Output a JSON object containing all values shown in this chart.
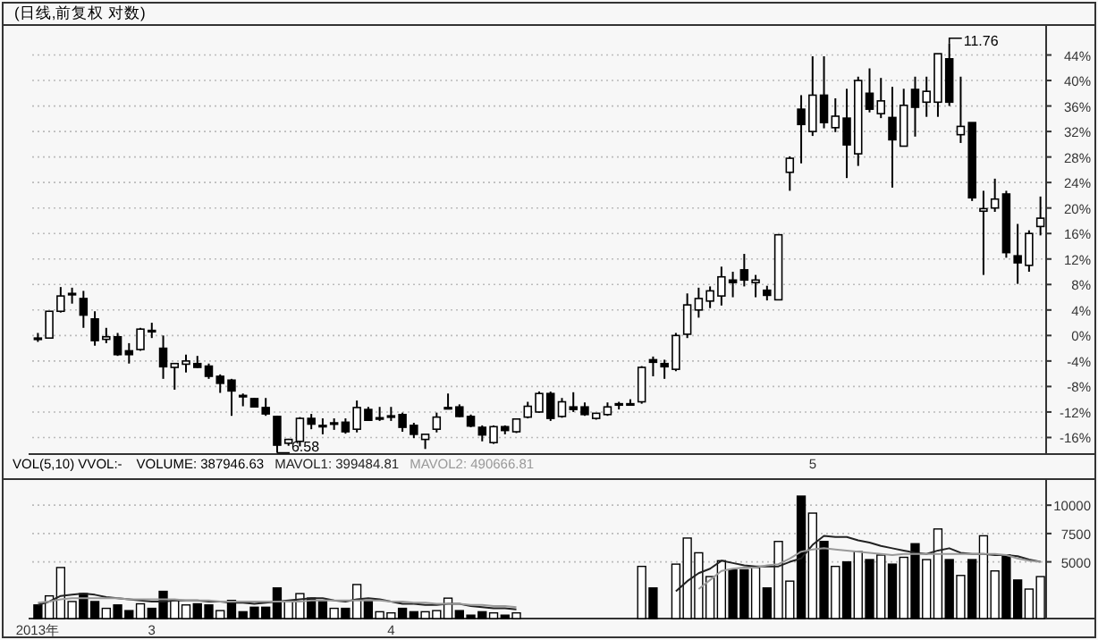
{
  "chart_data": [
    {
      "type": "candlestick",
      "title": "(日线,前复权 对数)",
      "grid": "y",
      "categories": [
        null,
        null,
        null,
        null,
        null,
        null,
        null,
        null,
        null,
        null,
        null,
        null,
        null,
        null,
        null,
        null,
        null,
        null,
        null,
        null,
        null,
        null,
        null,
        null,
        null,
        null,
        null,
        null,
        null,
        null,
        null,
        null,
        null,
        null,
        null,
        null,
        null,
        null,
        null,
        null,
        null,
        null,
        null,
        null,
        null,
        null,
        null,
        null,
        null,
        null,
        null,
        null,
        null,
        null,
        null,
        null,
        null,
        null,
        null,
        null,
        null,
        null,
        null,
        null,
        null,
        null,
        null,
        null,
        "5",
        null,
        null,
        null,
        null,
        null,
        null,
        null,
        null,
        null,
        null,
        null,
        null,
        null,
        null,
        null,
        null,
        null,
        null,
        null,
        null
      ],
      "ohlc": [
        [
          -0.4,
          0.4,
          -1,
          -0.4
        ],
        [
          -0.4,
          3.8,
          -0.4,
          3.8
        ],
        [
          3.8,
          7.6,
          3.6,
          6.2
        ],
        [
          6.6,
          7.5,
          5,
          6.6
        ],
        [
          5.8,
          7,
          1.2,
          3.2
        ],
        [
          2.6,
          3.8,
          -1.6,
          -0.8
        ],
        [
          -0.6,
          1.2,
          -1.2,
          -0.2
        ],
        [
          -0.2,
          0.4,
          -3.2,
          -3
        ],
        [
          -2.4,
          -1.2,
          -4.4,
          -3
        ],
        [
          -2.2,
          1.2,
          -2.4,
          1
        ],
        [
          0.8,
          2,
          -0.4,
          0.8
        ],
        [
          -2,
          0,
          -6.8,
          -4.9
        ],
        [
          -5,
          -4.4,
          -8.5,
          -4.4
        ],
        [
          -4.5,
          -3,
          -5.8,
          -4
        ],
        [
          -4.4,
          -3.2,
          -5.1,
          -5
        ],
        [
          -4.8,
          -4.4,
          -6.8,
          -6.4
        ],
        [
          -6.4,
          -6.1,
          -9,
          -7.5
        ],
        [
          -7,
          -6.8,
          -12.6,
          -8.7
        ],
        [
          -9.4,
          -9.1,
          -11.1,
          -9.4
        ],
        [
          -9.9,
          -9.8,
          -11.3,
          -11.2
        ],
        [
          -11.3,
          -9.8,
          -12.6,
          -12.3
        ],
        [
          -12.7,
          -12.6,
          -18.4,
          -17.2
        ],
        [
          -16.9,
          -16.2,
          -17.3,
          -16.3
        ],
        [
          -16.6,
          -12.8,
          -17.4,
          -13
        ],
        [
          -13,
          -12.3,
          -14.7,
          -13.9
        ],
        [
          -14.1,
          -13,
          -15.5,
          -14.1
        ],
        [
          -13.7,
          -13,
          -14.8,
          -13.7
        ],
        [
          -13.6,
          -13,
          -15.4,
          -15.1
        ],
        [
          -14.7,
          -10.2,
          -15.2,
          -11.3
        ],
        [
          -11.6,
          -11.2,
          -13.4,
          -13.3
        ],
        [
          -12.9,
          -11.2,
          -13.4,
          -12.9
        ],
        [
          -12.6,
          -11.2,
          -13.4,
          -12.6
        ],
        [
          -12.4,
          -12.1,
          -15.1,
          -14.4
        ],
        [
          -14.1,
          -13.7,
          -16.1,
          -15.5
        ],
        [
          -16.3,
          -15.5,
          -17.8,
          -15.5
        ],
        [
          -14.7,
          -12.1,
          -15.2,
          -12.8
        ],
        [
          -11.3,
          -9.1,
          -11.4,
          -11.3
        ],
        [
          -11.2,
          -10.8,
          -12.8,
          -12.7
        ],
        [
          -12.7,
          -12.4,
          -14.4,
          -14.2
        ],
        [
          -14.4,
          -14.1,
          -16.6,
          -15.6
        ],
        [
          -16.8,
          -14.1,
          -17,
          -14.3
        ],
        [
          -14.3,
          -14.1,
          -15.5,
          -14.9
        ],
        [
          -15.1,
          -13,
          -15.3,
          -13.1
        ],
        [
          -12.8,
          -10.4,
          -13,
          -11.1
        ],
        [
          -12,
          -8.8,
          -12.1,
          -9.1
        ],
        [
          -9.1,
          -8.8,
          -13.4,
          -13
        ],
        [
          -12.7,
          -9.8,
          -12.9,
          -10.4
        ],
        [
          -11.2,
          -8.9,
          -12,
          -11.6
        ],
        [
          -11.2,
          -10.5,
          -12.6,
          -12.4
        ],
        [
          -13,
          -12.2,
          -13.2,
          -12.2
        ],
        [
          -12.4,
          -10.5,
          -12.6,
          -11.2
        ],
        [
          -10.7,
          -10.4,
          -11.6,
          -10.7
        ],
        [
          -10.7,
          -10,
          -11,
          -10.7
        ],
        [
          -10.4,
          -4.8,
          -10.7,
          -5
        ],
        [
          -3.8,
          -3.3,
          -6.4,
          -4.2
        ],
        [
          -4.4,
          -3.8,
          -6.8,
          -4.9
        ],
        [
          -5.3,
          0.4,
          -5.6,
          0
        ],
        [
          0.2,
          6.6,
          -0.4,
          4.8
        ],
        [
          4,
          7.5,
          2.8,
          5.8
        ],
        [
          5.4,
          7.7,
          4.3,
          7
        ],
        [
          6.2,
          10.8,
          4.7,
          9.2
        ],
        [
          8.7,
          10,
          6,
          8.3
        ],
        [
          10.3,
          12.8,
          7.7,
          8.7
        ],
        [
          8.3,
          9.5,
          6,
          8.7
        ],
        [
          7.1,
          7.8,
          5.5,
          6.3
        ],
        [
          5.6,
          15.8,
          5.6,
          15.8
        ],
        [
          25.6,
          28.1,
          22.7,
          27.8
        ],
        [
          35.5,
          37.7,
          27,
          33.1
        ],
        [
          32,
          43.8,
          31.3,
          37.7
        ],
        [
          37.7,
          43.8,
          32.5,
          33.4
        ],
        [
          32.6,
          37.2,
          31.9,
          34.4
        ],
        [
          34.1,
          38.7,
          24.7,
          29.9
        ],
        [
          28.5,
          40.6,
          26.6,
          40
        ],
        [
          38,
          41.9,
          35,
          35.5
        ],
        [
          34.8,
          40.4,
          34.1,
          36.8
        ],
        [
          34.2,
          39,
          23.2,
          30.7
        ],
        [
          29.7,
          38.7,
          29.7,
          36.1
        ],
        [
          38.6,
          40.6,
          31.2,
          35.8
        ],
        [
          36.6,
          40.6,
          34.3,
          38.3
        ],
        [
          36.6,
          44.2,
          34.3,
          44.2
        ],
        [
          43.4,
          45.8,
          36,
          36.6
        ],
        [
          31.5,
          40.6,
          30.2,
          32.8
        ],
        [
          33.4,
          33.4,
          21.1,
          21.6
        ],
        [
          19.5,
          22.7,
          9.5,
          19.9
        ],
        [
          20,
          24.6,
          19.4,
          21.4
        ],
        [
          22.2,
          22.7,
          12.2,
          13
        ],
        [
          12.5,
          17.5,
          8.1,
          11.4
        ],
        [
          11,
          16.5,
          10,
          16
        ],
        [
          17.1,
          21.8,
          15.7,
          18.4
        ]
      ],
      "ylim": [
        -18.6,
        48.7
      ],
      "yticks": [
        {
          "value": 44,
          "label": "44%"
        },
        {
          "value": 40,
          "label": "40%"
        },
        {
          "value": 36,
          "label": "36%"
        },
        {
          "value": 32,
          "label": "32%"
        },
        {
          "value": 28,
          "label": "28%"
        },
        {
          "value": 24,
          "label": "24%"
        },
        {
          "value": 20,
          "label": "20%"
        },
        {
          "value": 16,
          "label": "16%"
        },
        {
          "value": 12,
          "label": "12%"
        },
        {
          "value": 8,
          "label": "8%"
        },
        {
          "value": 4,
          "label": "4%"
        },
        {
          "value": 0,
          "label": "0%"
        },
        {
          "value": -4,
          "label": "-4%"
        },
        {
          "value": -8,
          "label": "-8%"
        },
        {
          "value": -12,
          "label": "-12%"
        },
        {
          "value": -16,
          "label": "-16%"
        }
      ],
      "annotations": [
        "6.58",
        "11.76"
      ]
    },
    {
      "type": "bar",
      "title": "VOL(5,10) VVOL:-",
      "grid": "y",
      "legend": "top left",
      "categories": [
        "2013年",
        null,
        null,
        null,
        null,
        null,
        null,
        null,
        null,
        null,
        "3",
        null,
        null,
        null,
        null,
        null,
        null,
        null,
        null,
        null,
        null,
        null,
        null,
        null,
        null,
        null,
        null,
        null,
        null,
        null,
        null,
        "4",
        null,
        null,
        null,
        null,
        null,
        null,
        null,
        null,
        null,
        null,
        null,
        null,
        null,
        null,
        null,
        null,
        null,
        null,
        null,
        null,
        null,
        null,
        null,
        null,
        null,
        null,
        null,
        null,
        null,
        null,
        null,
        null,
        null,
        null,
        null,
        null,
        null,
        null,
        null,
        null,
        null,
        null,
        null,
        null,
        null,
        null,
        null,
        null,
        null,
        null,
        null,
        null,
        null,
        null,
        null,
        null,
        null
      ],
      "series": [
        {
          "name": "VOLUME: 387946.63",
          "color": "#000000",
          "values": [
            1200,
            2000,
            4500,
            1500,
            2200,
            1500,
            900,
            1200,
            700,
            1300,
            900,
            2400,
            1600,
            1200,
            1300,
            1200,
            700,
            1600,
            600,
            1000,
            1000,
            2700,
            1500,
            2200,
            1800,
            1500,
            900,
            900,
            3000,
            1600,
            600,
            500,
            900,
            600,
            600,
            700,
            1800,
            700,
            300,
            600,
            500,
            300,
            500,
            null,
            null,
            null,
            null,
            null,
            null,
            null,
            null,
            null,
            null,
            4600,
            2700,
            null,
            4800,
            7100,
            5800,
            3700,
            5100,
            4300,
            4300,
            4500,
            2700,
            6800,
            3300,
            10800,
            9300,
            6800,
            4600,
            5000,
            5900,
            5200,
            5600,
            4800,
            5400,
            6600,
            5200,
            7900,
            5200,
            3800,
            5200,
            7300,
            4200,
            5600,
            3400,
            2600,
            3700
          ],
          "colors": [
            "#000000",
            "#ffffff",
            "#ffffff",
            "#ffffff",
            "#000000",
            "#000000",
            "#ffffff",
            "#000000",
            "#000000",
            "#ffffff",
            "#000000",
            "#000000",
            "#ffffff",
            "#ffffff",
            "#000000",
            "#000000",
            "#ffffff",
            "#000000",
            "#000000",
            "#000000",
            "#000000",
            "#000000",
            "#ffffff",
            "#ffffff",
            "#000000",
            "#000000",
            "#ffffff",
            "#000000",
            "#ffffff",
            "#000000",
            "#ffffff",
            "#ffffff",
            "#000000",
            "#000000",
            "#ffffff",
            "#ffffff",
            "#ffffff",
            "#000000",
            "#000000",
            "#000000",
            "#ffffff",
            "#000000",
            "#ffffff",
            "#ffffff",
            "#ffffff",
            "#000000",
            "#ffffff",
            "#000000",
            "#000000",
            "#ffffff",
            "#ffffff",
            "#ffffff",
            "#ffffff",
            "#ffffff",
            "#000000",
            "#000000",
            "#ffffff",
            "#ffffff",
            "#ffffff",
            "#ffffff",
            "#ffffff",
            "#000000",
            "#000000",
            "#ffffff",
            "#000000",
            "#ffffff",
            "#ffffff",
            "#000000",
            "#ffffff",
            "#000000",
            "#ffffff",
            "#000000",
            "#ffffff",
            "#000000",
            "#ffffff",
            "#000000",
            "#ffffff",
            "#000000",
            "#ffffff",
            "#ffffff",
            "#000000",
            "#ffffff",
            "#000000",
            "#ffffff",
            "#ffffff",
            "#000000",
            "#000000",
            "#ffffff",
            "#ffffff"
          ]
        },
        {
          "type": "line",
          "name": "MAVOL1: 399484.81",
          "color": "#222222",
          "values": [
            1200,
            1500,
            2000,
            2100,
            2200,
            2100,
            1900,
            1800,
            1700,
            1600,
            1500,
            1500,
            1600,
            1600,
            1600,
            1500,
            1500,
            1400,
            1400,
            1300,
            1400,
            1500,
            1600,
            1700,
            1800,
            1800,
            1600,
            1500,
            1700,
            1800,
            1700,
            1500,
            1300,
            1300,
            1200,
            1200,
            1300,
            1300,
            1100,
            1000,
            900,
            900,
            800,
            null,
            null,
            null,
            null,
            null,
            null,
            null,
            null,
            null,
            null,
            null,
            null,
            null,
            2400,
            3300,
            4000,
            4400,
            5100,
            4900,
            4700,
            4600,
            4600,
            4600,
            5000,
            5300,
            6500,
            7300,
            7200,
            7200,
            6900,
            6700,
            6400,
            6200,
            6000,
            5800,
            5700,
            6000,
            6200,
            5800,
            5700,
            5700,
            5600,
            5600,
            5500,
            5200,
            5000
          ]
        },
        {
          "type": "line",
          "name": "MAVOL2: 490666.81",
          "color": "#999999",
          "values": [
            1400,
            1500,
            1700,
            1800,
            1800,
            1800,
            1800,
            1800,
            1700,
            1700,
            1700,
            1700,
            1700,
            1600,
            1600,
            1600,
            1500,
            1500,
            1500,
            1500,
            1500,
            1500,
            1500,
            1500,
            1600,
            1600,
            1600,
            1600,
            1600,
            1600,
            1600,
            1500,
            1500,
            1400,
            1400,
            1300,
            1300,
            1300,
            1200,
            1200,
            1100,
            1100,
            1000,
            null,
            null,
            null,
            null,
            null,
            null,
            null,
            null,
            null,
            null,
            null,
            null,
            null,
            null,
            null,
            2600,
            3400,
            4200,
            4400,
            4500,
            4500,
            4700,
            4800,
            5300,
            5900,
            6100,
            6200,
            6100,
            6000,
            5900,
            5800,
            5700,
            5600,
            5700,
            5700,
            5700,
            5700,
            5700,
            5700,
            5700,
            5700,
            5700,
            5600,
            5300,
            5100,
            5000
          ]
        }
      ],
      "ylim": [
        0,
        12300
      ],
      "yticks": [
        5000,
        7500,
        10000
      ]
    }
  ]
}
